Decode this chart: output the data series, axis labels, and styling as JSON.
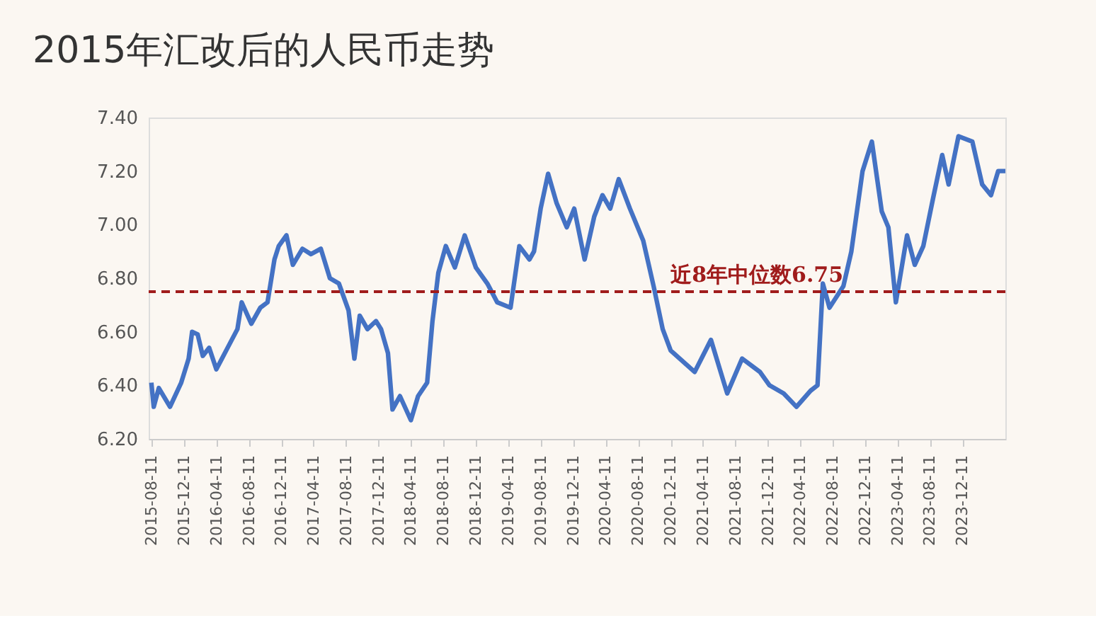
{
  "chart_data": {
    "type": "line",
    "title": "2015年汇改后的人民币走势",
    "x": [
      "2015-08-11",
      "2015-08-20",
      "2015-09-08",
      "2015-10-20",
      "2015-12-01",
      "2015-12-29",
      "2016-01-11",
      "2016-02-01",
      "2016-02-20",
      "2016-03-15",
      "2016-04-11",
      "2016-05-23",
      "2016-06-29",
      "2016-07-15",
      "2016-08-20",
      "2016-09-23",
      "2016-10-20",
      "2016-11-15",
      "2016-12-01",
      "2016-12-30",
      "2017-01-23",
      "2017-02-28",
      "2017-04-01",
      "2017-05-08",
      "2017-06-11",
      "2017-07-15",
      "2017-08-20",
      "2017-09-11",
      "2017-10-01",
      "2017-10-30",
      "2017-12-01",
      "2017-12-20",
      "2018-01-15",
      "2018-02-01",
      "2018-03-01",
      "2018-04-11",
      "2018-05-08",
      "2018-06-11",
      "2018-07-01",
      "2018-07-23",
      "2018-08-20",
      "2018-09-23",
      "2018-10-30",
      "2018-12-11",
      "2019-01-23",
      "2019-03-01",
      "2019-04-20",
      "2019-05-23",
      "2019-06-30",
      "2019-07-17",
      "2019-08-11",
      "2019-09-08",
      "2019-10-10",
      "2019-11-17",
      "2019-12-15",
      "2020-01-23",
      "2020-02-28",
      "2020-03-30",
      "2020-04-28",
      "2020-05-30",
      "2020-07-11",
      "2020-08-30",
      "2020-10-08",
      "2020-11-11",
      "2020-12-11",
      "2021-03-11",
      "2021-05-11",
      "2021-07-11",
      "2021-09-05",
      "2021-11-11",
      "2021-12-17",
      "2022-02-08",
      "2022-03-28",
      "2022-05-20",
      "2022-06-15",
      "2022-07-05",
      "2022-07-30",
      "2022-09-20",
      "2022-10-20",
      "2022-12-01",
      "2023-01-05",
      "2023-02-11",
      "2023-03-08",
      "2023-04-05",
      "2023-05-17",
      "2023-06-15",
      "2023-07-17",
      "2023-08-23",
      "2023-09-26",
      "2023-10-20",
      "2023-11-26",
      "2024-01-17",
      "2024-02-23",
      "2024-03-27",
      "2024-04-23",
      "2024-05-20"
    ],
    "series": [
      {
        "color": "#4472c4",
        "values": [
          6.41,
          6.32,
          6.39,
          6.32,
          6.41,
          6.5,
          6.6,
          6.59,
          6.51,
          6.54,
          6.46,
          6.54,
          6.61,
          6.71,
          6.63,
          6.69,
          6.71,
          6.87,
          6.92,
          6.96,
          6.85,
          6.91,
          6.89,
          6.91,
          6.8,
          6.78,
          6.68,
          6.5,
          6.66,
          6.61,
          6.64,
          6.61,
          6.52,
          6.31,
          6.36,
          6.27,
          6.36,
          6.41,
          6.64,
          6.82,
          6.92,
          6.84,
          6.96,
          6.84,
          6.78,
          6.71,
          6.69,
          6.92,
          6.87,
          6.9,
          7.06,
          7.19,
          7.08,
          6.99,
          7.06,
          6.87,
          7.03,
          7.11,
          7.06,
          7.17,
          7.06,
          6.94,
          6.77,
          6.61,
          6.53,
          6.45,
          6.57,
          6.37,
          6.5,
          6.45,
          6.4,
          6.37,
          6.32,
          6.38,
          6.4,
          6.78,
          6.69,
          6.77,
          6.9,
          7.2,
          7.31,
          7.05,
          6.99,
          6.71,
          6.96,
          6.85,
          6.92,
          7.1,
          7.26,
          7.15,
          7.33,
          7.31,
          7.15,
          7.11,
          7.2,
          7.2
        ]
      }
    ],
    "xlim": [
      "2015-08-01",
      "2024-05-20"
    ],
    "xticks": [
      "2015-08-11",
      "2015-12-11",
      "2016-04-11",
      "2016-08-11",
      "2016-12-11",
      "2017-04-11",
      "2017-08-11",
      "2017-12-11",
      "2018-04-11",
      "2018-08-11",
      "2018-12-11",
      "2019-04-11",
      "2019-08-11",
      "2019-12-11",
      "2020-04-11",
      "2020-08-11",
      "2020-12-11",
      "2021-04-11",
      "2021-08-11",
      "2021-12-11",
      "2022-04-11",
      "2022-08-11",
      "2022-12-11",
      "2023-04-11",
      "2023-08-11",
      "2023-12-11"
    ],
    "ylim": [
      6.2,
      7.4
    ],
    "yticks": [
      {
        "value": 6.2,
        "label": "6.20"
      },
      {
        "value": 6.4,
        "label": "6.40"
      },
      {
        "value": 6.6,
        "label": "6.60"
      },
      {
        "value": 6.8,
        "label": "6.80"
      },
      {
        "value": 7.0,
        "label": "7.00"
      },
      {
        "value": 7.2,
        "label": "7.20"
      },
      {
        "value": 7.4,
        "label": "7.40"
      }
    ],
    "ref_lines": [
      {
        "axis": "y",
        "value": 6.75,
        "label": "近8年中位数6.75",
        "color": "#a01c1c",
        "line_style": "dashed"
      }
    ],
    "grid": false,
    "line_style": "solid",
    "marker": "none"
  }
}
